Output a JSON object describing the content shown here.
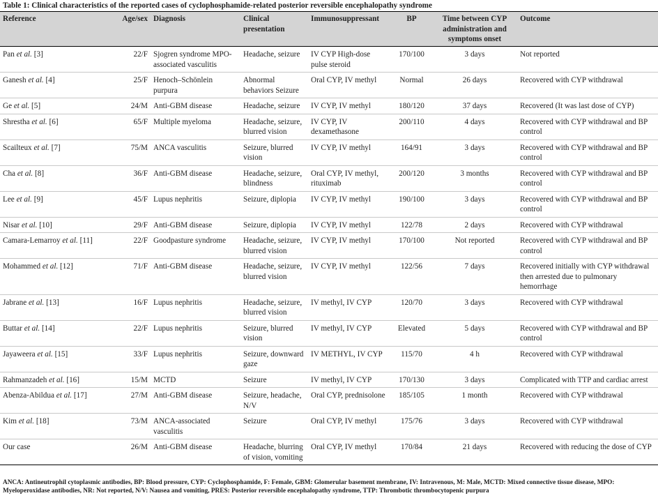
{
  "caption": "Table 1: Clinical characteristics of the reported cases of cyclophosphamide-related posterior reversible encephalopathy syndrome",
  "headers": {
    "reference": "Reference",
    "age_sex": "Age/sex",
    "diagnosis": "Diagnosis",
    "clinical": "Clinical presentation",
    "immuno": "Immunosuppressant",
    "bp": "BP",
    "time": "Time between CYP administration and symptoms onset",
    "outcome": "Outcome"
  },
  "rows": [
    {
      "author": "Pan",
      "etal": "et al.",
      "cite": "[3]",
      "age_sex": "22/F",
      "diagnosis": "Sjogren syndrome MPO-associated vasculitis",
      "clinical": "Headache, seizure",
      "immuno": "IV CYP High-dose pulse steroid",
      "bp": "170/100",
      "time": "3 days",
      "outcome": "Not reported"
    },
    {
      "author": "Ganesh",
      "etal": "et al.",
      "cite": "[4]",
      "age_sex": "25/F",
      "diagnosis": "Henoch–Schönlein purpura",
      "clinical": "Abnormal behaviors Seizure",
      "immuno": "Oral CYP, IV methyl",
      "bp": "Normal",
      "time": "26 days",
      "outcome": "Recovered with CYP withdrawal"
    },
    {
      "author": "Ge",
      "etal": "et al.",
      "cite": "[5]",
      "age_sex": "24/M",
      "diagnosis": "Anti-GBM disease",
      "clinical": "Headache, seizure",
      "immuno": "IV CYP, IV methyl",
      "bp": "180/120",
      "time": "37 days",
      "outcome": "Recovered (It was last dose of CYP)"
    },
    {
      "author": "Shrestha",
      "etal": "et al.",
      "cite": "[6]",
      "age_sex": "65/F",
      "diagnosis": "Multiple myeloma",
      "clinical": "Headache, seizure, blurred vision",
      "immuno": "IV CYP, IV dexamethasone",
      "bp": "200/110",
      "time": "4 days",
      "outcome": "Recovered with CYP withdrawal and BP control"
    },
    {
      "author": "Scailteux",
      "etal": "et al.",
      "cite": "[7]",
      "age_sex": "75/M",
      "diagnosis": "ANCA vasculitis",
      "clinical": "Seizure, blurred vision",
      "immuno": "IV CYP, IV methyl",
      "bp": "164/91",
      "time": "3 days",
      "outcome": "Recovered with CYP withdrawal and BP control"
    },
    {
      "author": "Cha",
      "etal": "et al.",
      "cite": "[8]",
      "age_sex": "36/F",
      "diagnosis": "Anti-GBM disease",
      "clinical": "Headache, seizure, blindness",
      "immuno": "Oral CYP, IV methyl, rituximab",
      "bp": "200/120",
      "time": "3 months",
      "outcome": "Recovered with CYP withdrawal and BP control"
    },
    {
      "author": "Lee",
      "etal": "et al.",
      "cite": "[9]",
      "age_sex": "45/F",
      "diagnosis": "Lupus nephritis",
      "clinical": "Seizure, diplopia",
      "immuno": "IV CYP, IV methyl",
      "bp": "190/100",
      "time": "3 days",
      "outcome": "Recovered with CYP withdrawal and BP control"
    },
    {
      "author": "Nisar",
      "etal": "et al.",
      "cite": "[10]",
      "age_sex": "29/F",
      "diagnosis": "Anti-GBM disease",
      "clinical": "Seizure, diplopia",
      "immuno": "IV CYP, IV methyl",
      "bp": "122/78",
      "time": "2 days",
      "outcome": "Recovered with CYP withdrawal"
    },
    {
      "author": "Camara-Lemarroy",
      "etal": "et al.",
      "cite": "[11]",
      "age_sex": "22/F",
      "diagnosis": "Goodpasture syndrome",
      "clinical": "Headache, seizure, blurred vision",
      "immuno": "IV CYP, IV methyl",
      "bp": "170/100",
      "time": "Not reported",
      "outcome": "Recovered with CYP withdrawal and BP control"
    },
    {
      "author": "Mohammed",
      "etal": "et al.",
      "cite": "[12]",
      "age_sex": "71/F",
      "diagnosis": "Anti-GBM disease",
      "clinical": "Headache, seizure, blurred vision",
      "immuno": "IV CYP, IV methyl",
      "bp": "122/56",
      "time": "7 days",
      "outcome": "Recovered initially with CYP withdrawal then arrested due to pulmonary hemorrhage"
    },
    {
      "author": "Jabrane",
      "etal": "et al.",
      "cite": "[13]",
      "age_sex": "16/F",
      "diagnosis": "Lupus nephritis",
      "clinical": "Headache, seizure, blurred vision",
      "immuno": "IV methyl, IV CYP",
      "bp": "120/70",
      "time": "3 days",
      "outcome": "Recovered with CYP withdrawal"
    },
    {
      "author": "Buttar",
      "etal": "et al.",
      "cite": "[14]",
      "age_sex": "22/F",
      "diagnosis": "Lupus nephritis",
      "clinical": "Seizure, blurred vision",
      "immuno": "IV methyl, IV CYP",
      "bp": "Elevated",
      "time": "5 days",
      "outcome": "Recovered with CYP withdrawal and BP control"
    },
    {
      "author": "Jayaweera",
      "etal": "et al.",
      "cite": "[15]",
      "age_sex": "33/F",
      "diagnosis": "Lupus nephritis",
      "clinical": "Seizure, downward gaze",
      "immuno": "IV METHYL, IV CYP",
      "bp": "115/70",
      "time": "4 h",
      "outcome": "Recovered with CYP withdrawal"
    },
    {
      "author": "Rahmanzadeh",
      "etal": "et al.",
      "cite": "[16]",
      "age_sex": "15/M",
      "diagnosis": "MCTD",
      "clinical": "Seizure",
      "immuno": "IV methyl, IV CYP",
      "bp": "170/130",
      "time": "3 days",
      "outcome": "Complicated with TTP and cardiac arrest"
    },
    {
      "author": "Abenza-Abildua",
      "etal": "et al.",
      "cite": "[17]",
      "age_sex": "27/M",
      "diagnosis": "Anti-GBM disease",
      "clinical": "Seizure, headache, N/V",
      "immuno": "Oral CYP, prednisolone",
      "bp": "185/105",
      "time": "1 month",
      "outcome": "Recovered with CYP withdrawal"
    },
    {
      "author": "Kim",
      "etal": "et al.",
      "cite": "[18]",
      "age_sex": "73/M",
      "diagnosis": "ANCA-associated vasculitis",
      "clinical": "Seizure",
      "immuno": "Oral CYP, IV methyl",
      "bp": "175/76",
      "time": "3 days",
      "outcome": "Recovered with CYP withdrawal"
    },
    {
      "author": "Our case",
      "etal": "",
      "cite": "",
      "age_sex": "26/M",
      "diagnosis": "Anti-GBM disease",
      "clinical": "Headache, blurring of vision, vomiting",
      "immuno": "Oral CYP, IV methyl",
      "bp": "170/84",
      "time": "21 days",
      "outcome": "Recovered with reducing the dose of CYP"
    }
  ],
  "footnote": "ANCA: Antineutrophil cytoplasmic antibodies, BP: Blood pressure, CYP: Cyclophosphamide, F: Female, GBM: Glomerular basement membrane, IV: Intravenous, M: Male, MCTD: Mixed connective tissue disease, MPO: Myeloperoxidase antibodies, NR: Not reported, N/V: Nausea and vomiting, PRES: Posterior reversible encephalopathy syndrome, TTP: Thrombotic thrombocytopenic purpura"
}
